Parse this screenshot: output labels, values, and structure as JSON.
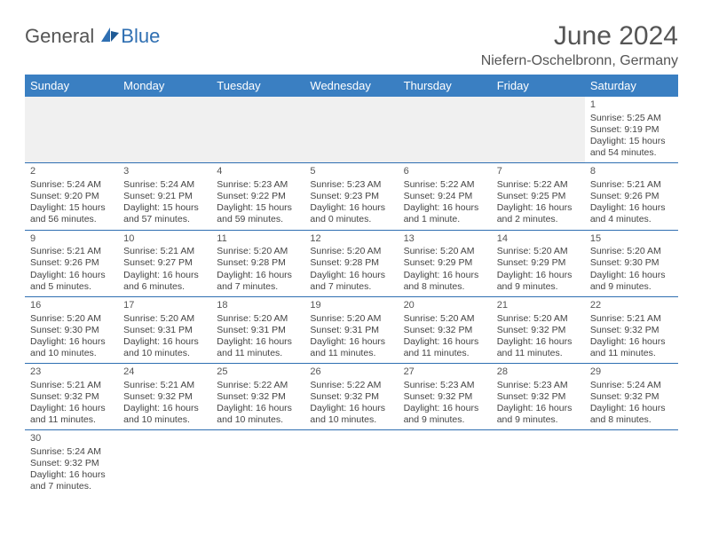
{
  "brand": {
    "part1": "General",
    "part2": "Blue"
  },
  "title": "June 2024",
  "location": "Niefern-Oschelbronn, Germany",
  "colors": {
    "header_bg": "#3a7fc2",
    "header_text": "#ffffff",
    "rule": "#2f6fb2",
    "title_color": "#555555",
    "text_color": "#444444",
    "empty_row_bg": "#f0f0f0",
    "background": "#ffffff"
  },
  "typography": {
    "title_fontsize": 30,
    "location_fontsize": 16,
    "dayheader_fontsize": 13,
    "cell_fontsize": 10.5
  },
  "day_headers": [
    "Sunday",
    "Monday",
    "Tuesday",
    "Wednesday",
    "Thursday",
    "Friday",
    "Saturday"
  ],
  "weeks": [
    [
      {
        "blank": true
      },
      {
        "blank": true
      },
      {
        "blank": true
      },
      {
        "blank": true
      },
      {
        "blank": true
      },
      {
        "blank": true
      },
      {
        "day": "1",
        "sunrise": "Sunrise: 5:25 AM",
        "sunset": "Sunset: 9:19 PM",
        "daylight1": "Daylight: 15 hours",
        "daylight2": "and 54 minutes."
      }
    ],
    [
      {
        "day": "2",
        "sunrise": "Sunrise: 5:24 AM",
        "sunset": "Sunset: 9:20 PM",
        "daylight1": "Daylight: 15 hours",
        "daylight2": "and 56 minutes."
      },
      {
        "day": "3",
        "sunrise": "Sunrise: 5:24 AM",
        "sunset": "Sunset: 9:21 PM",
        "daylight1": "Daylight: 15 hours",
        "daylight2": "and 57 minutes."
      },
      {
        "day": "4",
        "sunrise": "Sunrise: 5:23 AM",
        "sunset": "Sunset: 9:22 PM",
        "daylight1": "Daylight: 15 hours",
        "daylight2": "and 59 minutes."
      },
      {
        "day": "5",
        "sunrise": "Sunrise: 5:23 AM",
        "sunset": "Sunset: 9:23 PM",
        "daylight1": "Daylight: 16 hours",
        "daylight2": "and 0 minutes."
      },
      {
        "day": "6",
        "sunrise": "Sunrise: 5:22 AM",
        "sunset": "Sunset: 9:24 PM",
        "daylight1": "Daylight: 16 hours",
        "daylight2": "and 1 minute."
      },
      {
        "day": "7",
        "sunrise": "Sunrise: 5:22 AM",
        "sunset": "Sunset: 9:25 PM",
        "daylight1": "Daylight: 16 hours",
        "daylight2": "and 2 minutes."
      },
      {
        "day": "8",
        "sunrise": "Sunrise: 5:21 AM",
        "sunset": "Sunset: 9:26 PM",
        "daylight1": "Daylight: 16 hours",
        "daylight2": "and 4 minutes."
      }
    ],
    [
      {
        "day": "9",
        "sunrise": "Sunrise: 5:21 AM",
        "sunset": "Sunset: 9:26 PM",
        "daylight1": "Daylight: 16 hours",
        "daylight2": "and 5 minutes."
      },
      {
        "day": "10",
        "sunrise": "Sunrise: 5:21 AM",
        "sunset": "Sunset: 9:27 PM",
        "daylight1": "Daylight: 16 hours",
        "daylight2": "and 6 minutes."
      },
      {
        "day": "11",
        "sunrise": "Sunrise: 5:20 AM",
        "sunset": "Sunset: 9:28 PM",
        "daylight1": "Daylight: 16 hours",
        "daylight2": "and 7 minutes."
      },
      {
        "day": "12",
        "sunrise": "Sunrise: 5:20 AM",
        "sunset": "Sunset: 9:28 PM",
        "daylight1": "Daylight: 16 hours",
        "daylight2": "and 7 minutes."
      },
      {
        "day": "13",
        "sunrise": "Sunrise: 5:20 AM",
        "sunset": "Sunset: 9:29 PM",
        "daylight1": "Daylight: 16 hours",
        "daylight2": "and 8 minutes."
      },
      {
        "day": "14",
        "sunrise": "Sunrise: 5:20 AM",
        "sunset": "Sunset: 9:29 PM",
        "daylight1": "Daylight: 16 hours",
        "daylight2": "and 9 minutes."
      },
      {
        "day": "15",
        "sunrise": "Sunrise: 5:20 AM",
        "sunset": "Sunset: 9:30 PM",
        "daylight1": "Daylight: 16 hours",
        "daylight2": "and 9 minutes."
      }
    ],
    [
      {
        "day": "16",
        "sunrise": "Sunrise: 5:20 AM",
        "sunset": "Sunset: 9:30 PM",
        "daylight1": "Daylight: 16 hours",
        "daylight2": "and 10 minutes."
      },
      {
        "day": "17",
        "sunrise": "Sunrise: 5:20 AM",
        "sunset": "Sunset: 9:31 PM",
        "daylight1": "Daylight: 16 hours",
        "daylight2": "and 10 minutes."
      },
      {
        "day": "18",
        "sunrise": "Sunrise: 5:20 AM",
        "sunset": "Sunset: 9:31 PM",
        "daylight1": "Daylight: 16 hours",
        "daylight2": "and 11 minutes."
      },
      {
        "day": "19",
        "sunrise": "Sunrise: 5:20 AM",
        "sunset": "Sunset: 9:31 PM",
        "daylight1": "Daylight: 16 hours",
        "daylight2": "and 11 minutes."
      },
      {
        "day": "20",
        "sunrise": "Sunrise: 5:20 AM",
        "sunset": "Sunset: 9:32 PM",
        "daylight1": "Daylight: 16 hours",
        "daylight2": "and 11 minutes."
      },
      {
        "day": "21",
        "sunrise": "Sunrise: 5:20 AM",
        "sunset": "Sunset: 9:32 PM",
        "daylight1": "Daylight: 16 hours",
        "daylight2": "and 11 minutes."
      },
      {
        "day": "22",
        "sunrise": "Sunrise: 5:21 AM",
        "sunset": "Sunset: 9:32 PM",
        "daylight1": "Daylight: 16 hours",
        "daylight2": "and 11 minutes."
      }
    ],
    [
      {
        "day": "23",
        "sunrise": "Sunrise: 5:21 AM",
        "sunset": "Sunset: 9:32 PM",
        "daylight1": "Daylight: 16 hours",
        "daylight2": "and 11 minutes."
      },
      {
        "day": "24",
        "sunrise": "Sunrise: 5:21 AM",
        "sunset": "Sunset: 9:32 PM",
        "daylight1": "Daylight: 16 hours",
        "daylight2": "and 10 minutes."
      },
      {
        "day": "25",
        "sunrise": "Sunrise: 5:22 AM",
        "sunset": "Sunset: 9:32 PM",
        "daylight1": "Daylight: 16 hours",
        "daylight2": "and 10 minutes."
      },
      {
        "day": "26",
        "sunrise": "Sunrise: 5:22 AM",
        "sunset": "Sunset: 9:32 PM",
        "daylight1": "Daylight: 16 hours",
        "daylight2": "and 10 minutes."
      },
      {
        "day": "27",
        "sunrise": "Sunrise: 5:23 AM",
        "sunset": "Sunset: 9:32 PM",
        "daylight1": "Daylight: 16 hours",
        "daylight2": "and 9 minutes."
      },
      {
        "day": "28",
        "sunrise": "Sunrise: 5:23 AM",
        "sunset": "Sunset: 9:32 PM",
        "daylight1": "Daylight: 16 hours",
        "daylight2": "and 9 minutes."
      },
      {
        "day": "29",
        "sunrise": "Sunrise: 5:24 AM",
        "sunset": "Sunset: 9:32 PM",
        "daylight1": "Daylight: 16 hours",
        "daylight2": "and 8 minutes."
      }
    ],
    [
      {
        "day": "30",
        "sunrise": "Sunrise: 5:24 AM",
        "sunset": "Sunset: 9:32 PM",
        "daylight1": "Daylight: 16 hours",
        "daylight2": "and 7 minutes."
      },
      {
        "blank": true
      },
      {
        "blank": true
      },
      {
        "blank": true
      },
      {
        "blank": true
      },
      {
        "blank": true
      },
      {
        "blank": true
      }
    ]
  ]
}
